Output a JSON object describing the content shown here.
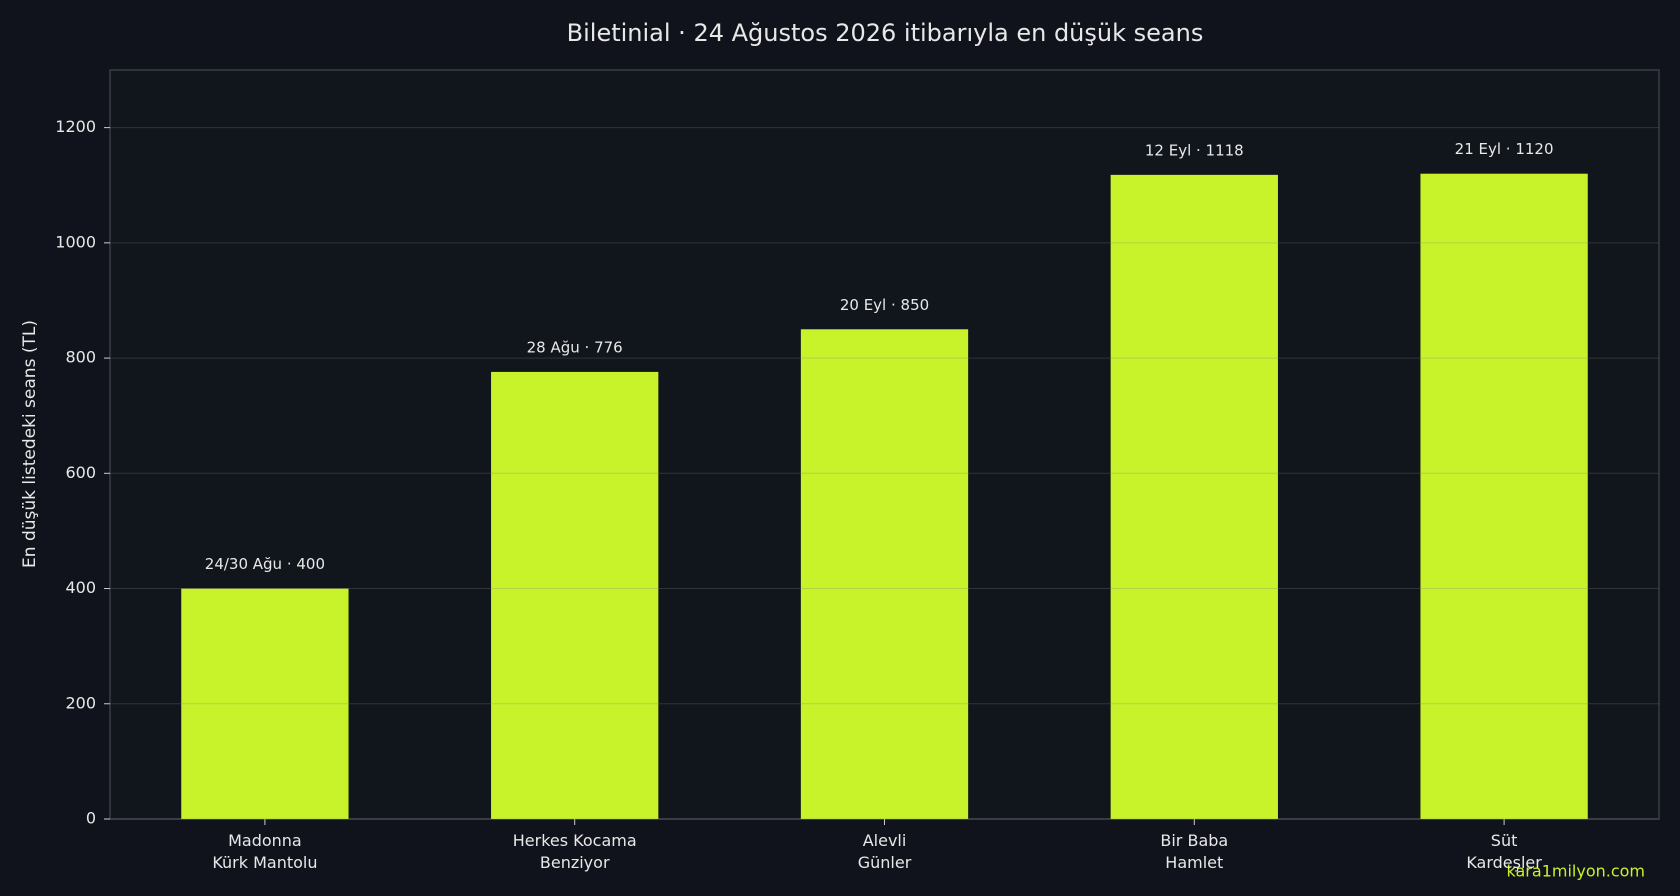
{
  "chart_data": {
    "type": "bar",
    "title": "Biletinial · 24 Ağustos 2026 itibarıyla en düşük seans",
    "y_label": "En düşük listedeki seans (TL)",
    "categories": [
      [
        "Madonna",
        "Kürk Mantolu"
      ],
      [
        "Herkes Kocama",
        "Benziyor"
      ],
      [
        "Alevli",
        "Günler"
      ],
      [
        "Bir Baba",
        "Hamlet"
      ],
      [
        "Süt",
        "Kardeşler"
      ]
    ],
    "values": [
      400,
      776,
      850,
      1118,
      1120
    ],
    "value_labels": [
      "24/30 Ağu · 400",
      "28 Ağu · 776",
      "20 Eyl · 850",
      "12 Eyl · 1118",
      "21 Eyl · 1120"
    ],
    "color": "#c8f22a",
    "ylim": [
      0,
      1300
    ],
    "yticks": [
      0,
      200,
      400,
      600,
      800,
      1000,
      1200
    ],
    "grid": true,
    "watermark": "kara1milyon.com"
  }
}
